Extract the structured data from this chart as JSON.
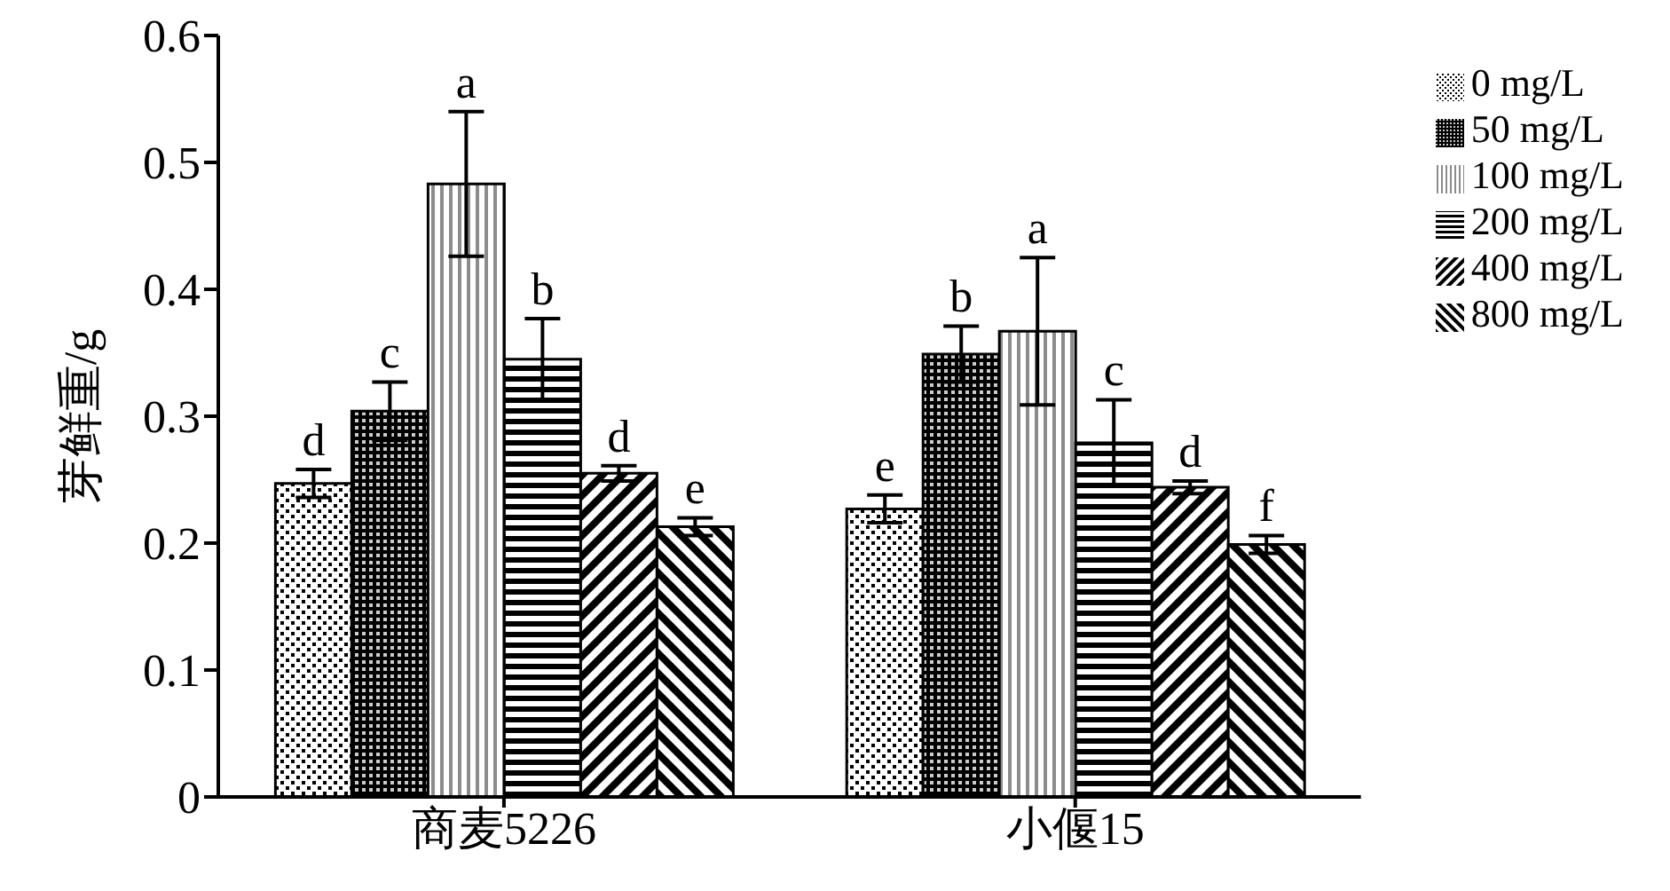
{
  "chart_data": {
    "type": "bar",
    "ylabel": "芽鲜重/g",
    "categories": [
      "商麦5226",
      "小偃15"
    ],
    "series": [
      {
        "name": "0 mg/L",
        "color": "#000000",
        "values": [
          0.247,
          0.227
        ],
        "errors": [
          0.011,
          0.011
        ],
        "value_labels": [
          "d",
          "e"
        ]
      },
      {
        "name": "50 mg/L",
        "color": "#000000",
        "values": [
          0.304,
          0.349
        ],
        "errors": [
          0.023,
          0.022
        ],
        "value_labels": [
          "c",
          "b"
        ]
      },
      {
        "name": "100 mg/L",
        "color": "#000000",
        "values": [
          0.483,
          0.367
        ],
        "errors": [
          0.057,
          0.058
        ],
        "value_labels": [
          "a",
          "a"
        ]
      },
      {
        "name": "200 mg/L",
        "color": "#000000",
        "values": [
          0.345,
          0.279
        ],
        "errors": [
          0.032,
          0.034
        ],
        "value_labels": [
          "b",
          "c"
        ]
      },
      {
        "name": "400 mg/L",
        "color": "#000000",
        "values": [
          0.255,
          0.244
        ],
        "errors": [
          0.006,
          0.005
        ],
        "value_labels": [
          "d",
          "d"
        ]
      },
      {
        "name": "800 mg/L",
        "color": "#000000",
        "values": [
          0.213,
          0.199
        ],
        "errors": [
          0.007,
          0.007
        ],
        "value_labels": [
          "e",
          "f"
        ]
      }
    ],
    "ylim": [
      0,
      0.6
    ],
    "yticks": [
      0,
      0.1,
      0.2,
      0.3,
      0.4,
      0.5,
      0.6
    ],
    "grid": false,
    "legend": "top right"
  }
}
